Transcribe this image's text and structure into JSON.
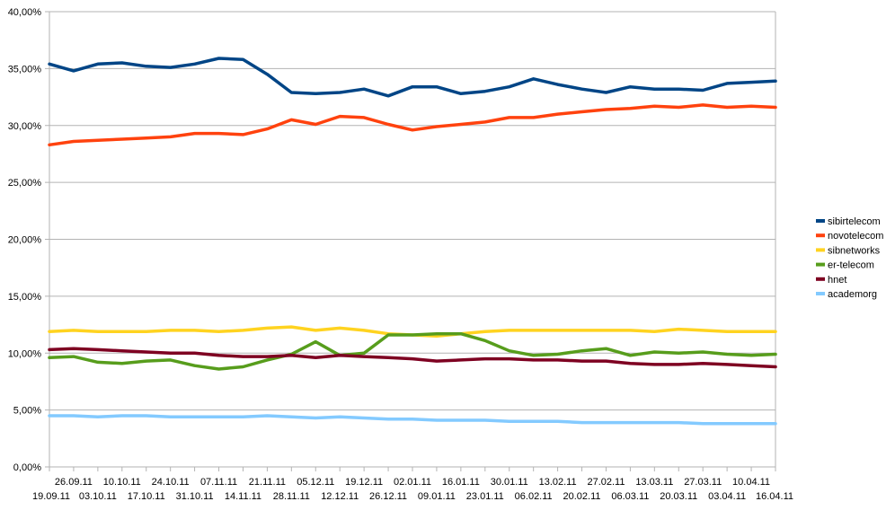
{
  "chart_data": {
    "type": "line",
    "title": "",
    "xlabel": "",
    "ylabel": "",
    "ylim": [
      0,
      40
    ],
    "y_ticks": [
      "0,00%",
      "5,00%",
      "10,00%",
      "15,00%",
      "20,00%",
      "25,00%",
      "30,00%",
      "35,00%",
      "40,00%"
    ],
    "grid": "horizontal",
    "legend_position": "right",
    "categories": [
      "19.09.11",
      "26.09.11",
      "03.10.11",
      "10.10.11",
      "17.10.11",
      "24.10.11",
      "31.10.11",
      "07.11.11",
      "14.11.11",
      "21.11.11",
      "28.11.11",
      "05.12.11",
      "12.12.11",
      "19.12.11",
      "26.12.11",
      "02.01.11",
      "09.01.11",
      "16.01.11",
      "23.01.11",
      "30.01.11",
      "06.02.11",
      "13.02.11",
      "20.02.11",
      "27.02.11",
      "06.03.11",
      "13.03.11",
      "20.03.11",
      "27.03.11",
      "03.04.11",
      "10.04.11",
      "16.04.11"
    ],
    "series": [
      {
        "name": "sibirtelecom",
        "color": "#004586",
        "values": [
          35.4,
          34.8,
          35.4,
          35.5,
          35.2,
          35.1,
          35.4,
          35.9,
          35.8,
          34.5,
          32.9,
          32.8,
          32.9,
          33.2,
          32.6,
          33.4,
          33.4,
          32.8,
          33.0,
          33.4,
          34.1,
          33.6,
          33.2,
          32.9,
          33.4,
          33.2,
          33.2,
          33.1,
          33.7,
          33.8,
          33.9
        ]
      },
      {
        "name": "novotelecom",
        "color": "#ff420e",
        "values": [
          28.3,
          28.6,
          28.7,
          28.8,
          28.9,
          29.0,
          29.3,
          29.3,
          29.2,
          29.7,
          30.5,
          30.1,
          30.8,
          30.7,
          30.1,
          29.6,
          29.9,
          30.1,
          30.3,
          30.7,
          30.7,
          31.0,
          31.2,
          31.4,
          31.5,
          31.7,
          31.6,
          31.8,
          31.6,
          31.7,
          31.6
        ]
      },
      {
        "name": "sibnetworks",
        "color": "#ffd320",
        "values": [
          11.9,
          12.0,
          11.9,
          11.9,
          11.9,
          12.0,
          12.0,
          11.9,
          12.0,
          12.2,
          12.3,
          12.0,
          12.2,
          12.0,
          11.7,
          11.6,
          11.5,
          11.7,
          11.9,
          12.0,
          12.0,
          12.0,
          12.0,
          12.0,
          12.0,
          11.9,
          12.1,
          12.0,
          11.9,
          11.9,
          11.9
        ]
      },
      {
        "name": "er-telecom",
        "color": "#579d1c",
        "values": [
          9.6,
          9.7,
          9.2,
          9.1,
          9.3,
          9.4,
          8.9,
          8.6,
          8.8,
          9.4,
          9.9,
          11.0,
          9.8,
          10.0,
          11.6,
          11.6,
          11.7,
          11.7,
          11.1,
          10.2,
          9.8,
          9.9,
          10.2,
          10.4,
          9.8,
          10.1,
          10.0,
          10.1,
          9.9,
          9.8,
          9.9
        ]
      },
      {
        "name": "hnet",
        "color": "#7e0021",
        "values": [
          10.3,
          10.4,
          10.3,
          10.2,
          10.1,
          10.0,
          10.0,
          9.8,
          9.7,
          9.7,
          9.8,
          9.6,
          9.8,
          9.7,
          9.6,
          9.5,
          9.3,
          9.4,
          9.5,
          9.5,
          9.4,
          9.4,
          9.3,
          9.3,
          9.1,
          9.0,
          9.0,
          9.1,
          9.0,
          8.9,
          8.8
        ]
      },
      {
        "name": "academorg",
        "color": "#83caff",
        "values": [
          4.5,
          4.5,
          4.4,
          4.5,
          4.5,
          4.4,
          4.4,
          4.4,
          4.4,
          4.5,
          4.4,
          4.3,
          4.4,
          4.3,
          4.2,
          4.2,
          4.1,
          4.1,
          4.1,
          4.0,
          4.0,
          4.0,
          3.9,
          3.9,
          3.9,
          3.9,
          3.9,
          3.8,
          3.8,
          3.8,
          3.8
        ]
      }
    ]
  }
}
